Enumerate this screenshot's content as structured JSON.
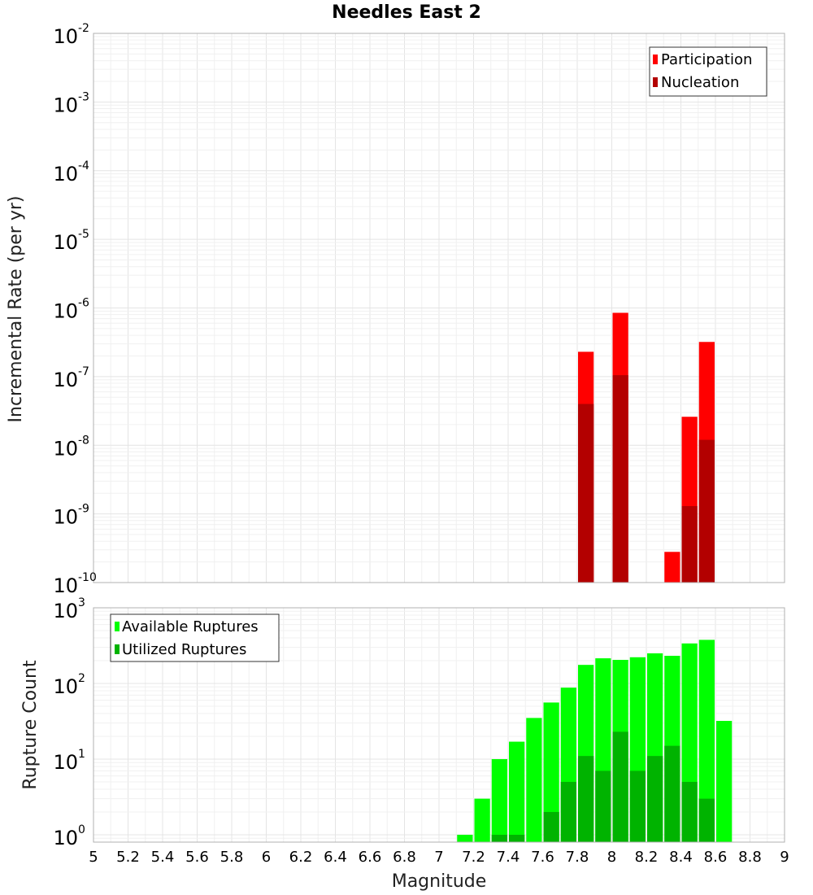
{
  "title": "Needles East 2",
  "xlabel": "Magnitude",
  "colors": {
    "participation": "#ff0000",
    "nucleation": "#b30000",
    "available": "#00ff00",
    "utilized": "#00b300"
  },
  "chart_data": [
    {
      "type": "bar",
      "title": "Needles East 2",
      "xlabel": "Magnitude",
      "ylabel": "Incremental Rate (per yr)",
      "yscale": "log",
      "xlim": [
        5,
        9
      ],
      "ylim": [
        1e-10,
        0.01
      ],
      "y_ticks": [
        {
          "base": "10",
          "exp": "-2",
          "value": 0.01
        },
        {
          "base": "10",
          "exp": "-3",
          "value": 0.001
        },
        {
          "base": "10",
          "exp": "-4",
          "value": 0.0001
        },
        {
          "base": "10",
          "exp": "-5",
          "value": 1e-05
        },
        {
          "base": "10",
          "exp": "-6",
          "value": 1e-06
        },
        {
          "base": "10",
          "exp": "-7",
          "value": 1e-07
        },
        {
          "base": "10",
          "exp": "-8",
          "value": 1e-08
        },
        {
          "base": "10",
          "exp": "-9",
          "value": 1e-09
        },
        {
          "base": "10",
          "exp": "-10",
          "value": 1e-10
        }
      ],
      "legend_position": "top-right",
      "series": [
        {
          "name": "Participation",
          "color": "#ff0000",
          "x": [
            7.85,
            8.05,
            8.35,
            8.45,
            8.55
          ],
          "values": [
            2.3e-07,
            8.5e-07,
            2.8e-10,
            2.6e-08,
            3.2e-07
          ]
        },
        {
          "name": "Nucleation",
          "color": "#b30000",
          "x": [
            7.85,
            8.05,
            8.35,
            8.45,
            8.55
          ],
          "values": [
            4e-08,
            1.05e-07,
            0,
            1.3e-09,
            1.2e-08
          ]
        }
      ]
    },
    {
      "type": "bar",
      "xlabel": "Magnitude",
      "ylabel": "Rupture Count",
      "yscale": "log",
      "xlim": [
        5,
        9
      ],
      "ylim": [
        0.8,
        1000
      ],
      "y_ticks": [
        {
          "base": "10",
          "exp": "3",
          "value": 1000
        },
        {
          "base": "10",
          "exp": "2",
          "value": 100
        },
        {
          "base": "10",
          "exp": "1",
          "value": 10
        },
        {
          "base": "10",
          "exp": "0",
          "value": 1
        }
      ],
      "legend_position": "top-left",
      "series": [
        {
          "name": "Available Ruptures",
          "color": "#00ff00",
          "x": [
            7.15,
            7.25,
            7.35,
            7.45,
            7.55,
            7.65,
            7.75,
            7.85,
            7.95,
            8.05,
            8.15,
            8.25,
            8.35,
            8.45,
            8.55,
            8.65
          ],
          "values": [
            1,
            3,
            10,
            17,
            35,
            56,
            88,
            176,
            215,
            205,
            222,
            250,
            232,
            338,
            377,
            32
          ]
        },
        {
          "name": "Utilized Ruptures",
          "color": "#00b300",
          "x": [
            7.35,
            7.45,
            7.65,
            7.75,
            7.85,
            7.95,
            8.05,
            8.15,
            8.25,
            8.35,
            8.45,
            8.55
          ],
          "values": [
            1,
            1,
            2,
            5,
            11,
            7,
            23,
            7,
            11,
            15,
            5,
            3
          ]
        }
      ]
    }
  ],
  "x_tick_labels": [
    "5",
    "5.2",
    "5.4",
    "5.6",
    "5.8",
    "6",
    "6.2",
    "6.4",
    "6.6",
    "6.8",
    "7",
    "7.2",
    "7.4",
    "7.6",
    "7.8",
    "8",
    "8.2",
    "8.4",
    "8.6",
    "8.8",
    "9"
  ]
}
